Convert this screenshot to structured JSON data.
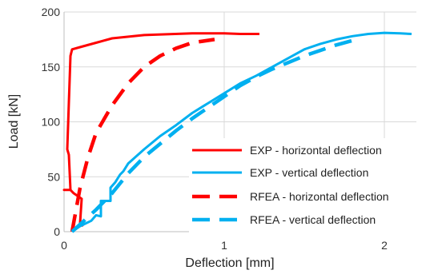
{
  "chart_data": {
    "type": "line",
    "xlabel": "Deflection [mm]",
    "ylabel": "Load [kN]",
    "xlim": [
      0,
      2.2
    ],
    "ylim": [
      0,
      200
    ],
    "xticks": [
      0,
      1,
      2
    ],
    "yticks": [
      0,
      50,
      100,
      150,
      200
    ],
    "xtick_labels": [
      "0",
      "1",
      "2"
    ],
    "ytick_labels": [
      "0",
      "50",
      "100",
      "150",
      "200"
    ],
    "grid": true,
    "legend_position": "right",
    "series": [
      {
        "name": "EXP - horizontal deflection",
        "color": "#ff0000",
        "dash": "solid",
        "points": [
          [
            0.12,
            5
          ],
          [
            0.1,
            8
          ],
          [
            0.11,
            30
          ],
          [
            0.06,
            35
          ],
          [
            0.04,
            38
          ],
          [
            0.0,
            38
          ],
          [
            0.04,
            38
          ],
          [
            0.03,
            70
          ],
          [
            0.02,
            75
          ],
          [
            0.04,
            160
          ],
          [
            0.05,
            166
          ],
          [
            0.1,
            168
          ],
          [
            0.2,
            172
          ],
          [
            0.3,
            176
          ],
          [
            0.5,
            179
          ],
          [
            0.8,
            180.5
          ],
          [
            1.0,
            180.5
          ],
          [
            1.1,
            180
          ],
          [
            1.22,
            180
          ]
        ]
      },
      {
        "name": "EXP - vertical deflection",
        "color": "#00b0f0",
        "dash": "solid",
        "points": [
          [
            0.05,
            0
          ],
          [
            0.1,
            5
          ],
          [
            0.17,
            10
          ],
          [
            0.2,
            15
          ],
          [
            0.23,
            14
          ],
          [
            0.23,
            28
          ],
          [
            0.26,
            28
          ],
          [
            0.29,
            28
          ],
          [
            0.29,
            40
          ],
          [
            0.32,
            45
          ],
          [
            0.35,
            52
          ],
          [
            0.37,
            55
          ],
          [
            0.4,
            62
          ],
          [
            0.5,
            75
          ],
          [
            0.6,
            87
          ],
          [
            0.7,
            97
          ],
          [
            0.8,
            108
          ],
          [
            0.9,
            117
          ],
          [
            1.0,
            126
          ],
          [
            1.1,
            135
          ],
          [
            1.2,
            142
          ],
          [
            1.3,
            150
          ],
          [
            1.4,
            158
          ],
          [
            1.5,
            166
          ],
          [
            1.6,
            171
          ],
          [
            1.7,
            175
          ],
          [
            1.8,
            178
          ],
          [
            1.9,
            180
          ],
          [
            2.0,
            181
          ],
          [
            2.1,
            180.5
          ],
          [
            2.17,
            180
          ]
        ]
      },
      {
        "name": "RFEA - horizontal deflection",
        "color": "#ff0000",
        "dash": "dashed",
        "points": [
          [
            0.05,
            0
          ],
          [
            0.1,
            40
          ],
          [
            0.15,
            68
          ],
          [
            0.2,
            90
          ],
          [
            0.3,
            115
          ],
          [
            0.4,
            135
          ],
          [
            0.5,
            150
          ],
          [
            0.6,
            160
          ],
          [
            0.7,
            167
          ],
          [
            0.8,
            172
          ],
          [
            0.94,
            175
          ]
        ]
      },
      {
        "name": "RFEA - vertical deflection",
        "color": "#00b0f0",
        "dash": "dashed",
        "points": [
          [
            0.05,
            0
          ],
          [
            0.2,
            20
          ],
          [
            0.3,
            35
          ],
          [
            0.4,
            53
          ],
          [
            0.5,
            68
          ],
          [
            0.6,
            80
          ],
          [
            0.7,
            92
          ],
          [
            0.8,
            103
          ],
          [
            0.9,
            113
          ],
          [
            1.0,
            123
          ],
          [
            1.1,
            133
          ],
          [
            1.2,
            141
          ],
          [
            1.3,
            148
          ],
          [
            1.4,
            154
          ],
          [
            1.5,
            160
          ],
          [
            1.6,
            165
          ],
          [
            1.7,
            170
          ],
          [
            1.8,
            174
          ],
          [
            1.83,
            175
          ]
        ]
      }
    ]
  }
}
